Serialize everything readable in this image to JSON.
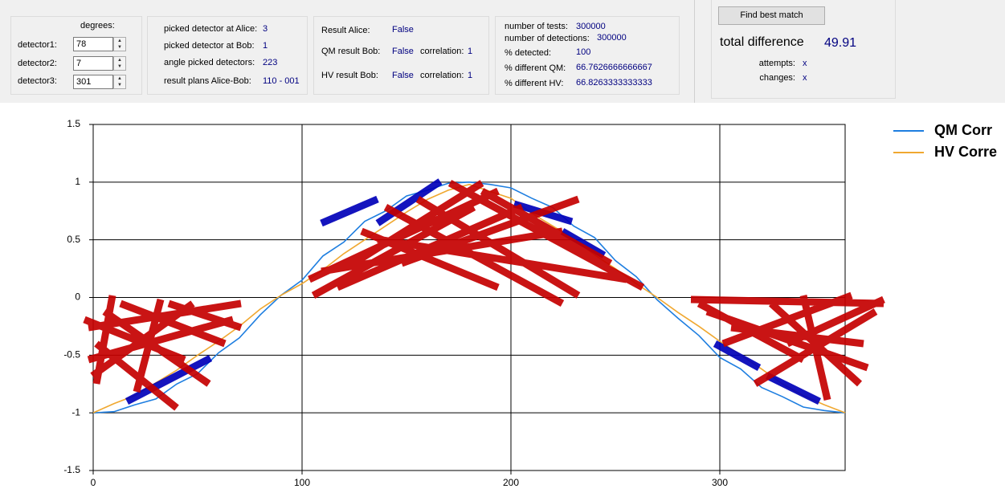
{
  "detectors": {
    "header": "degrees:",
    "items": [
      {
        "label": "detector1:",
        "value": "78"
      },
      {
        "label": "detector2:",
        "value": "7"
      },
      {
        "label": "detector3:",
        "value": "301"
      }
    ]
  },
  "picks": [
    {
      "label": "picked detector at Alice:",
      "value": "3"
    },
    {
      "label": "picked detector at Bob:",
      "value": "1"
    },
    {
      "label": "angle picked detectors:",
      "value": "223"
    },
    {
      "label": "result plans Alice-Bob:",
      "value": "110 - 001"
    }
  ],
  "results": {
    "alice": {
      "label": "Result Alice:",
      "value": "False"
    },
    "qm": {
      "label": "QM result Bob:",
      "value": "False",
      "corr_label": "correlation:",
      "corr": "1"
    },
    "hv": {
      "label": "HV result Bob:",
      "value": "False",
      "corr_label": "correlation:",
      "corr": "1"
    }
  },
  "stats": [
    {
      "label": "number of tests:",
      "value": "300000"
    },
    {
      "label": "number of detections:",
      "value": "300000"
    },
    {
      "label": "% detected:",
      "value": "100"
    },
    {
      "label": "% different QM:",
      "value": "66.7626666666667"
    },
    {
      "label": "% different HV:",
      "value": "66.8263333333333"
    }
  ],
  "match": {
    "button": "Find best match",
    "total_label": "total difference",
    "total": "49.91",
    "attempts_label": "attempts:",
    "attempts": "x",
    "changes_label": "changes:",
    "changes": "x"
  },
  "chart_data": {
    "type": "line",
    "x": [
      0,
      10,
      20,
      30,
      40,
      50,
      60,
      70,
      80,
      90,
      100,
      110,
      120,
      130,
      140,
      150,
      160,
      170,
      180,
      190,
      200,
      210,
      220,
      230,
      240,
      250,
      260,
      270,
      280,
      290,
      300,
      310,
      320,
      330,
      340,
      350,
      360
    ],
    "series": [
      {
        "name": "QM Corr",
        "color": "#1e7ee0",
        "values": [
          -1,
          -0.99,
          -0.93,
          -0.88,
          -0.75,
          -0.66,
          -0.48,
          -0.35,
          -0.15,
          0.02,
          0.15,
          0.36,
          0.48,
          0.66,
          0.75,
          0.88,
          0.93,
          0.99,
          1,
          0.98,
          0.95,
          0.86,
          0.78,
          0.62,
          0.52,
          0.32,
          0.18,
          -0.02,
          -0.18,
          -0.33,
          -0.52,
          -0.62,
          -0.78,
          -0.86,
          -0.95,
          -0.98,
          -1
        ]
      },
      {
        "name": "HV Corre",
        "color": "#f0a830",
        "values": [
          -1,
          -0.92,
          -0.85,
          -0.74,
          -0.63,
          -0.5,
          -0.38,
          -0.25,
          -0.1,
          0.02,
          0.12,
          0.24,
          0.38,
          0.5,
          0.62,
          0.74,
          0.85,
          0.93,
          0.98,
          0.92,
          0.86,
          0.73,
          0.62,
          0.51,
          0.37,
          0.25,
          0.12,
          0,
          -0.13,
          -0.25,
          -0.38,
          -0.5,
          -0.62,
          -0.75,
          -0.85,
          -0.93,
          -1
        ]
      }
    ],
    "xlim": [
      0,
      360
    ],
    "xticks": [
      0,
      100,
      200,
      300
    ],
    "ylim": [
      -1.5,
      1.5
    ],
    "yticks": [
      1.5,
      1,
      0.5,
      0,
      -0.5,
      -1,
      -1.5
    ],
    "grid": true
  }
}
